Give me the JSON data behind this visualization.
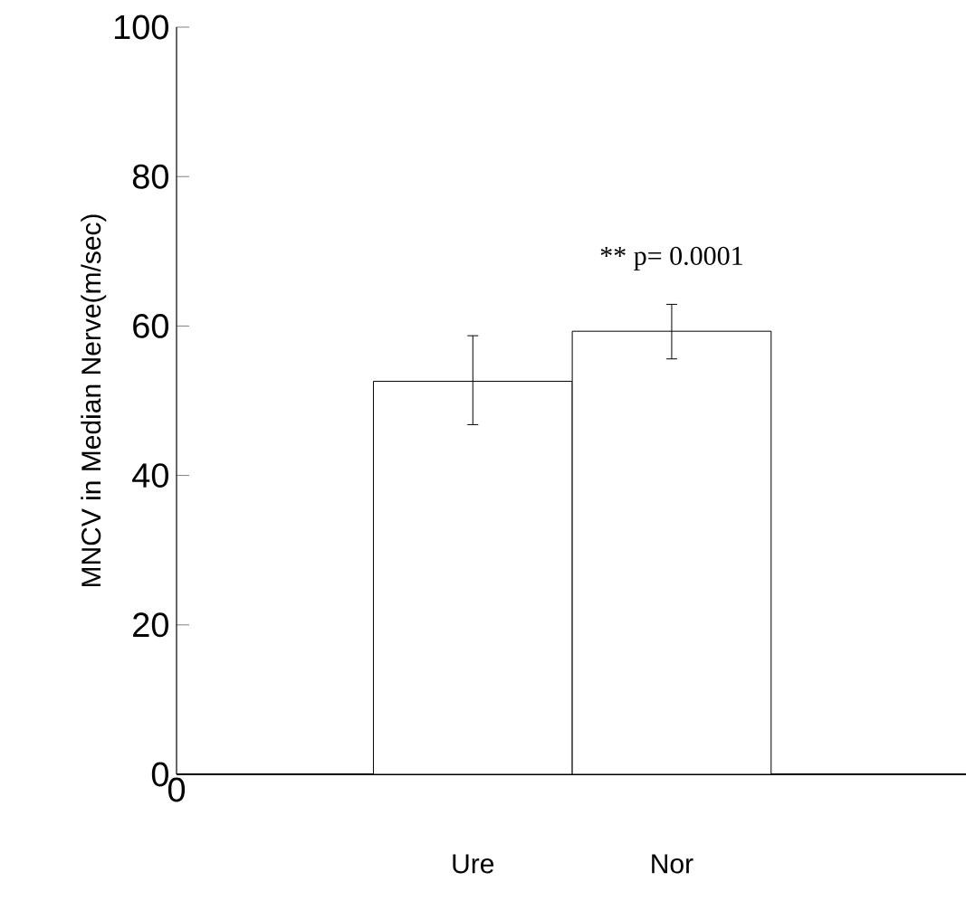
{
  "chart_data": {
    "type": "bar",
    "ylabel": "MNCV in Median Nerve(m/sec)",
    "categories": [
      "Ure",
      "Nor"
    ],
    "values": [
      52.6,
      59.3
    ],
    "colors": [
      "#ffffff",
      "#ffffff"
    ],
    "errors": [
      [
        46.8,
        58.7
      ],
      [
        55.6,
        62.9
      ]
    ],
    "ylim": [
      0,
      100
    ],
    "yticks": [
      0,
      20,
      40,
      60,
      80,
      100
    ],
    "annotations": [
      "** p= 0.0001",
      "0"
    ]
  }
}
